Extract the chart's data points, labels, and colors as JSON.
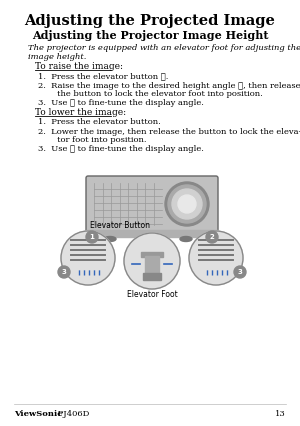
{
  "bg_color": "#ffffff",
  "title": "Adjusting the Projected Image",
  "subtitle": "Adjusting the Projector Image Height",
  "italic_text": "The projector is equipped with an elevator foot for adjusting the\nimage height.",
  "raise_header": "To raise the image:",
  "raise_items_line1": "1.  Press the elevator button ①.",
  "raise_items_line2a": "2.  Raise the image to the desired height angle ②, then release",
  "raise_items_line2b": "     the button to lock the elevator foot into position.",
  "raise_items_line3": "3.  Use ④ to fine-tune the display angle.",
  "lower_header": "To lower the image:",
  "lower_items_line1": "1.  Press the elevator button.",
  "lower_items_line2a": "2.  Lower the image, then release the button to lock the eleva-",
  "lower_items_line2b": "     tor foot into position.",
  "lower_items_line3": "3.  Use ④ to fine-tune the display angle.",
  "elevator_button_label": "Elevator Button",
  "elevator_foot_label": "Elevator Foot",
  "footer_brand": "ViewSonic",
  "footer_model": " PJ406D",
  "footer_page": "13",
  "text_color": "#000000",
  "gray_color": "#888888",
  "blue_color": "#3366bb",
  "light_gray": "#cccccc",
  "dark_gray": "#555555",
  "proj_body_color": "#c0c0c0",
  "proj_edge_color": "#666666",
  "proj_vent_color": "#999999",
  "lens_outer_color": "#888888",
  "lens_mid_color": "#aaaaaa",
  "lens_inner_color": "#d0d0d0",
  "lens_core_color": "#e8e8e8",
  "circle_fill": "#e0e0e0",
  "circle_edge": "#888888",
  "num_circle_color": "#888888"
}
